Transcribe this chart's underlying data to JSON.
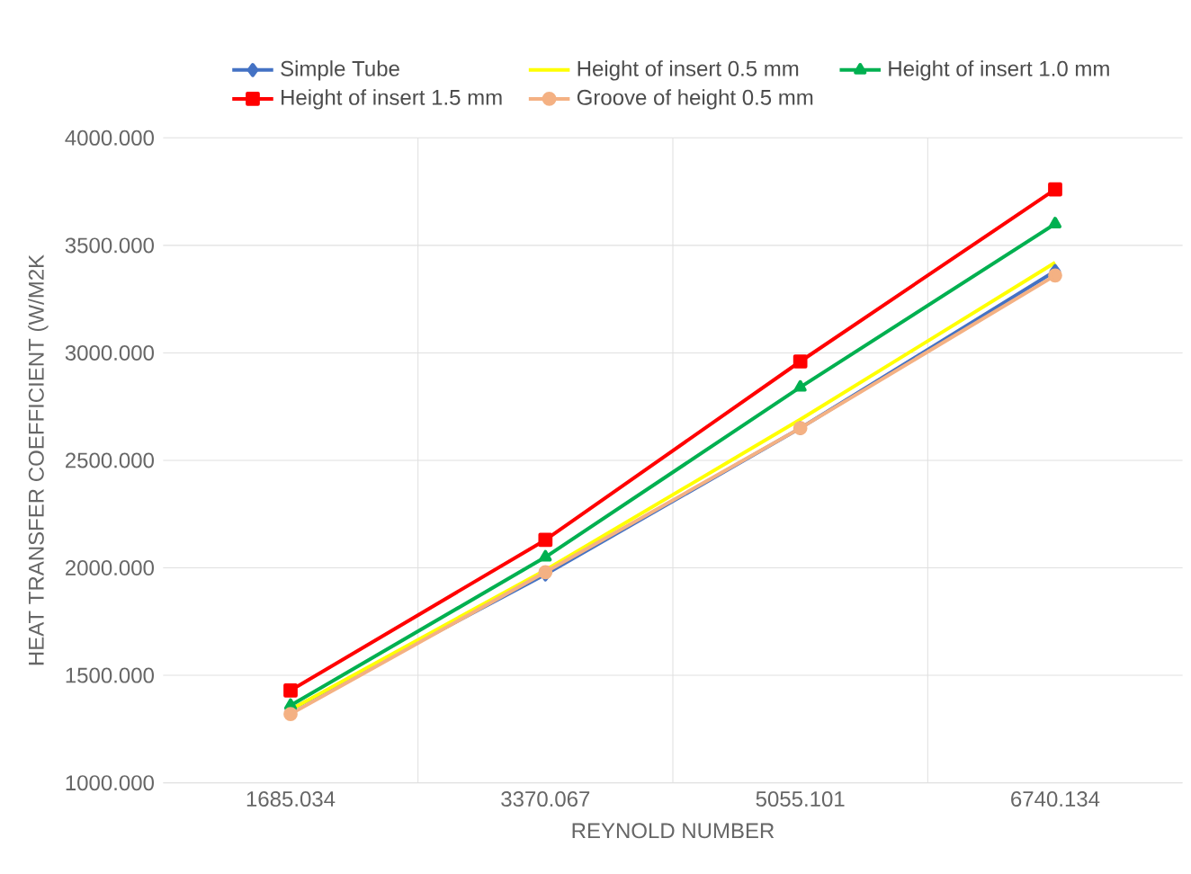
{
  "chart_data": {
    "type": "line",
    "xlabel": "REYNOLD NUMBER",
    "ylabel": "HEAT TRANSFER COEFFICIENT (W/M2K",
    "categories": [
      "1685.034",
      "3370.067",
      "5055.101",
      "6740.134"
    ],
    "series": [
      {
        "name": "Simple Tube",
        "color": "#4472c4",
        "marker": "diamond",
        "values": [
          1340,
          1970,
          2650,
          3380
        ]
      },
      {
        "name": "Height of insert 0.5 mm",
        "color": "#ffff00",
        "marker": "none",
        "values": [
          1340,
          1990,
          2690,
          3420
        ]
      },
      {
        "name": "Height of insert 1.0 mm",
        "color": "#00b050",
        "marker": "triangle",
        "values": [
          1360,
          2050,
          2840,
          3600
        ]
      },
      {
        "name": "Height of insert 1.5 mm",
        "color": "#ff0000",
        "marker": "square",
        "values": [
          1430,
          2130,
          2960,
          3760
        ]
      },
      {
        "name": "Groove of height 0.5 mm",
        "color": "#f4b183",
        "marker": "circle",
        "values": [
          1320,
          1980,
          2650,
          3360
        ]
      }
    ],
    "ylim": [
      1000,
      4000
    ],
    "yticks": [
      {
        "value": 1000,
        "label": "1000.000"
      },
      {
        "value": 1500,
        "label": "1500.000"
      },
      {
        "value": 2000,
        "label": "2000.000"
      },
      {
        "value": 2500,
        "label": "2500.000"
      },
      {
        "value": 3000,
        "label": "3000.000"
      },
      {
        "value": 3500,
        "label": "3500.000"
      },
      {
        "value": 4000,
        "label": "4000.000"
      }
    ],
    "grid": true,
    "legend": "top",
    "line_style": "solid"
  }
}
